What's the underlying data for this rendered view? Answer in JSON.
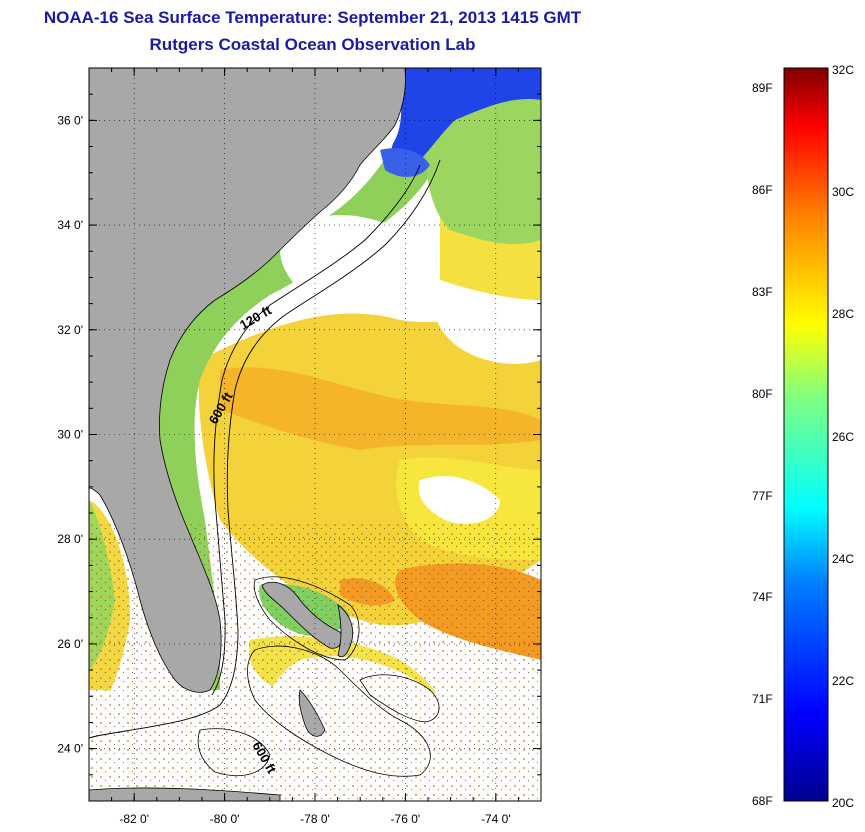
{
  "header": {
    "title": "NOAA-16 Sea Surface Temperature:  September 21, 2013 1415 GMT",
    "subtitle": "Rutgers Coastal Ocean Observation Lab"
  },
  "map": {
    "lat_ticks": [
      {
        "value": 36,
        "label": "36 0'"
      },
      {
        "value": 34,
        "label": "34 0'"
      },
      {
        "value": 32,
        "label": "32 0'"
      },
      {
        "value": 30,
        "label": "30 0'"
      },
      {
        "value": 28,
        "label": "28 0'"
      },
      {
        "value": 26,
        "label": "26 0'"
      },
      {
        "value": 24,
        "label": "24 0'"
      }
    ],
    "lon_ticks": [
      {
        "value": -82,
        "label": "-82 0'"
      },
      {
        "value": -80,
        "label": "-80 0'"
      },
      {
        "value": -78,
        "label": "-78 0'"
      },
      {
        "value": -76,
        "label": "-76 0'"
      },
      {
        "value": -74,
        "label": "-74 0'"
      }
    ],
    "lat_range": [
      23,
      37
    ],
    "lon_range": [
      -83,
      -73
    ],
    "contour_labels": [
      "120 ft",
      "600 ft",
      "600 ft"
    ],
    "colors": {
      "land": "#a8a8a8",
      "cloud": "#ffffff",
      "cold_water": "#1b3fe6",
      "green_water": "#7fd65a",
      "yellow_water": "#f2e23a",
      "orange_water": "#f5a623"
    }
  },
  "colorbar": {
    "fahrenheit_labels": [
      "89F",
      "86F",
      "83F",
      "80F",
      "77F",
      "74F",
      "71F",
      "68F"
    ],
    "celsius_labels": [
      "32C",
      "30C",
      "28C",
      "26C",
      "24C",
      "22C",
      "20C"
    ],
    "range_c": [
      20,
      32
    ]
  }
}
